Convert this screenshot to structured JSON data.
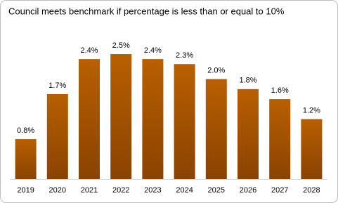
{
  "chart_data": {
    "type": "bar",
    "title": "Council meets benchmark if percentage is less than or equal to 10%",
    "categories": [
      "2019",
      "2020",
      "2021",
      "2022",
      "2023",
      "2024",
      "2025",
      "2026",
      "2027",
      "2028"
    ],
    "values": [
      0.8,
      1.7,
      2.4,
      2.5,
      2.4,
      2.3,
      2.0,
      1.8,
      1.6,
      1.2
    ],
    "value_labels": [
      "0.8%",
      "1.7%",
      "2.4%",
      "2.5%",
      "2.4%",
      "2.3%",
      "2.0%",
      "1.8%",
      "1.6%",
      "1.2%"
    ],
    "color": "#a65200"
  }
}
